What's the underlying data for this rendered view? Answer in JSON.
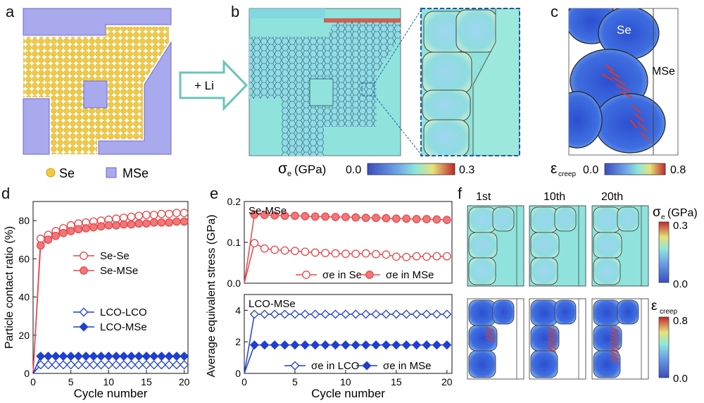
{
  "panel_letters": [
    "a",
    "b",
    "c",
    "d",
    "e",
    "f"
  ],
  "panel_a": {
    "legend": [
      {
        "label": "Se",
        "color": "#f2c93a"
      },
      {
        "label": "MSe",
        "color": "#a9a9ee"
      }
    ]
  },
  "arrow_label": "+ Li",
  "panel_b": {
    "colorbar_label": "σ",
    "colorbar_sub": "e",
    "colorbar_unit": "(GPa)",
    "min": "0.0",
    "max": "0.3"
  },
  "panel_c": {
    "labels": [
      "Se",
      "MSe"
    ],
    "colorbar_label": "ε",
    "colorbar_sub": "creep",
    "min": "0.0",
    "max": "0.8"
  },
  "panel_f": {
    "columns": [
      "1st",
      "10th",
      "20th"
    ],
    "sigma_label": "σ",
    "sigma_sub": "e",
    "sigma_unit": "(GPa)",
    "sigma_max": "0.3",
    "sigma_min": "0.0",
    "eps_label": "ε",
    "eps_sub": "creep",
    "eps_max": "0.8",
    "eps_min": "0.0"
  },
  "colors": {
    "red": "#e8474a",
    "red_fill": "#f07878",
    "blue": "#1f3fd1",
    "mse_fill": "#a9a9ee",
    "se_fill": "#f2c93a",
    "cmap_low": "#3b4cc0",
    "cmap_mid": "#7fe0e0",
    "cmap_high": "#c0282c"
  },
  "chart_data": [
    {
      "id": "d",
      "type": "line",
      "xlabel": "Cycle number",
      "ylabel": "Particle contact ratio (%)",
      "xlim": [
        0,
        20.5
      ],
      "ylim": [
        0,
        90
      ],
      "xticks": [
        0,
        5,
        10,
        15,
        20
      ],
      "yticks": [
        0,
        20,
        40,
        60,
        80
      ],
      "legend": "right",
      "series": [
        {
          "name": "Se-Se",
          "marker": "open-circle",
          "color": "#e8474a",
          "x": [
            0,
            1,
            2,
            3,
            4,
            5,
            6,
            7,
            8,
            9,
            10,
            11,
            12,
            13,
            14,
            15,
            16,
            17,
            18,
            19,
            20
          ],
          "y": [
            0,
            70.5,
            72.5,
            74.5,
            76.0,
            77.5,
            78.5,
            79.0,
            79.5,
            80.0,
            80.5,
            81.0,
            81.5,
            82.0,
            82.5,
            83.0,
            83.0,
            83.5,
            83.5,
            84.0,
            84.0
          ]
        },
        {
          "name": "Se-MSe",
          "marker": "filled-circle",
          "color": "#e8474a",
          "x": [
            0,
            1,
            2,
            3,
            4,
            5,
            6,
            7,
            8,
            9,
            10,
            11,
            12,
            13,
            14,
            15,
            16,
            17,
            18,
            19,
            20
          ],
          "y": [
            0,
            67.0,
            70.0,
            72.0,
            73.5,
            74.5,
            75.5,
            76.0,
            76.5,
            77.0,
            77.5,
            77.5,
            78.0,
            78.0,
            78.5,
            78.5,
            79.0,
            79.0,
            79.0,
            79.5,
            79.5
          ]
        },
        {
          "name": "LCO-LCO",
          "marker": "open-diamond",
          "color": "#1f3fd1",
          "x": [
            0,
            1,
            2,
            3,
            4,
            5,
            6,
            7,
            8,
            9,
            10,
            11,
            12,
            13,
            14,
            15,
            16,
            17,
            18,
            19,
            20
          ],
          "y": [
            0,
            4.5,
            4.5,
            4.5,
            4.5,
            4.5,
            4.5,
            4.5,
            4.5,
            4.5,
            4.5,
            4.5,
            4.5,
            4.5,
            4.5,
            4.5,
            4.5,
            4.5,
            4.5,
            4.5,
            4.5
          ]
        },
        {
          "name": "LCO-MSe",
          "marker": "filled-diamond",
          "color": "#1f3fd1",
          "x": [
            0,
            1,
            2,
            3,
            4,
            5,
            6,
            7,
            8,
            9,
            10,
            11,
            12,
            13,
            14,
            15,
            16,
            17,
            18,
            19,
            20
          ],
          "y": [
            0,
            9.0,
            9.0,
            9.0,
            9.0,
            9.0,
            9.0,
            9.0,
            9.0,
            9.0,
            9.0,
            9.0,
            9.0,
            9.0,
            9.0,
            9.0,
            9.0,
            9.0,
            9.0,
            9.0,
            9.0
          ]
        }
      ]
    },
    {
      "id": "e-top",
      "type": "line",
      "title": "Se-MSe",
      "ylim": [
        0,
        0.2
      ],
      "xlim": [
        0,
        20.5
      ],
      "yticks": [
        0.0,
        0.1,
        0.2
      ],
      "legend": "bottom-right",
      "series": [
        {
          "name": "σe in Se",
          "marker": "open-circle",
          "color": "#e8474a",
          "x": [
            0,
            1,
            2,
            3,
            4,
            5,
            6,
            7,
            8,
            9,
            10,
            11,
            12,
            13,
            14,
            15,
            16,
            17,
            18,
            19,
            20
          ],
          "y": [
            0,
            0.098,
            0.085,
            0.082,
            0.08,
            0.079,
            0.077,
            0.075,
            0.074,
            0.073,
            0.072,
            0.072,
            0.073,
            0.071,
            0.07,
            0.065,
            0.064,
            0.066,
            0.065,
            0.066,
            0.066
          ]
        },
        {
          "name": "σe in MSe",
          "marker": "filled-circle",
          "color": "#e8474a",
          "x": [
            0,
            1,
            2,
            3,
            4,
            5,
            6,
            7,
            8,
            9,
            10,
            11,
            12,
            13,
            14,
            15,
            16,
            17,
            18,
            19,
            20
          ],
          "y": [
            0,
            0.168,
            0.167,
            0.166,
            0.165,
            0.165,
            0.164,
            0.163,
            0.163,
            0.162,
            0.162,
            0.161,
            0.16,
            0.16,
            0.159,
            0.158,
            0.158,
            0.157,
            0.157,
            0.156,
            0.155
          ]
        }
      ]
    },
    {
      "id": "e-bottom",
      "type": "line",
      "title": "LCO-MSe",
      "xlabel": "Cycle number",
      "ylabel": "Average equivalent stress (GPa)",
      "xlim": [
        0,
        20.5
      ],
      "ylim": [
        0,
        5
      ],
      "xticks": [
        0,
        5,
        10,
        15,
        20
      ],
      "yticks": [
        0,
        2,
        4
      ],
      "legend": "bottom",
      "series": [
        {
          "name": "σe in LCO",
          "marker": "open-diamond",
          "color": "#1f3fd1",
          "x": [
            0,
            1,
            2,
            3,
            4,
            5,
            6,
            7,
            8,
            9,
            10,
            11,
            12,
            13,
            14,
            15,
            16,
            17,
            18,
            19,
            20
          ],
          "y": [
            0,
            3.75,
            3.75,
            3.75,
            3.75,
            3.75,
            3.75,
            3.75,
            3.75,
            3.75,
            3.75,
            3.75,
            3.75,
            3.75,
            3.75,
            3.75,
            3.75,
            3.75,
            3.75,
            3.75,
            3.75
          ]
        },
        {
          "name": "σe in MSe",
          "marker": "filled-diamond",
          "color": "#1f3fd1",
          "x": [
            0,
            1,
            2,
            3,
            4,
            5,
            6,
            7,
            8,
            9,
            10,
            11,
            12,
            13,
            14,
            15,
            16,
            17,
            18,
            19,
            20
          ],
          "y": [
            0,
            1.8,
            1.8,
            1.8,
            1.8,
            1.8,
            1.8,
            1.8,
            1.8,
            1.8,
            1.8,
            1.8,
            1.8,
            1.8,
            1.8,
            1.8,
            1.8,
            1.8,
            1.8,
            1.8,
            1.8
          ]
        }
      ]
    }
  ]
}
